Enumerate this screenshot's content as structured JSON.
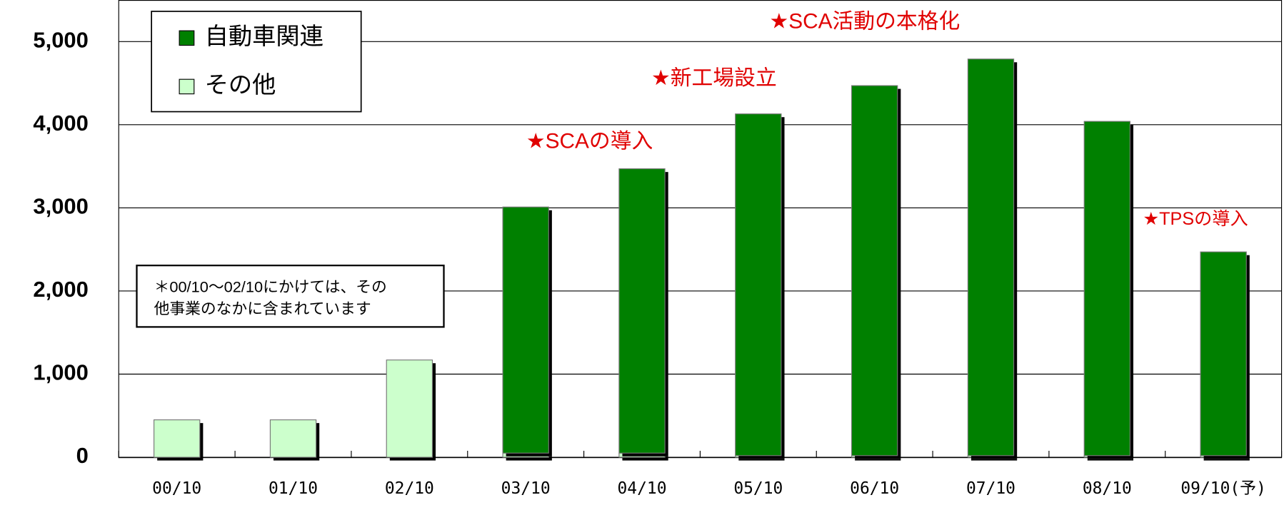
{
  "chart_data": {
    "type": "stacked_bar",
    "categories": [
      "00/10",
      "01/10",
      "02/10",
      "03/10",
      "04/10",
      "05/10",
      "06/10",
      "07/10",
      "08/10",
      "09/10(予)"
    ],
    "series": [
      {
        "name": "その他",
        "color": "#ccffcc",
        "values": [
          450,
          450,
          1170,
          50,
          50,
          20,
          20,
          20,
          20,
          20
        ]
      },
      {
        "name": "自動車関連",
        "color": "#008000",
        "values": [
          null,
          null,
          null,
          2960,
          3420,
          4110,
          4450,
          4770,
          4020,
          2450
        ]
      }
    ],
    "ylim": [
      0,
      5500
    ],
    "yticks": [
      0,
      {
        "value": 1000,
        "label": "1,000"
      },
      {
        "value": 2000,
        "label": "2,000"
      },
      {
        "value": 3000,
        "label": "3,000"
      },
      {
        "value": 4000,
        "label": "4,000"
      },
      {
        "value": 5000,
        "label": "5,000"
      }
    ],
    "grid": true,
    "annotations": [
      "★SCAの導入",
      "★新工場設立",
      "★SCA活動の本格化",
      "★TPSの導入"
    ],
    "note": [
      "＊00/10～02/10にかけては、その",
      "他事業のなかに含まれています"
    ]
  }
}
